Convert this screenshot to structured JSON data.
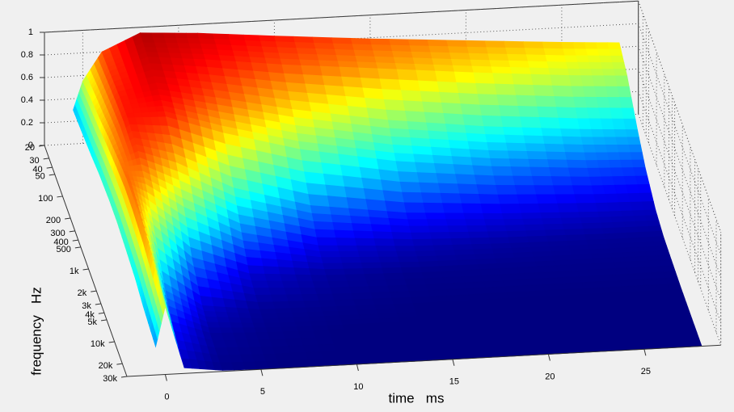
{
  "chart_data": {
    "type": "surface",
    "x_label": "time   ms",
    "y_label": "frequency   Hz",
    "x": [
      -0.5,
      0,
      1,
      3,
      6,
      10,
      15,
      20,
      25,
      28
    ],
    "y": [
      20,
      40,
      100,
      200,
      500,
      1000,
      2000,
      5000,
      10000,
      30000
    ],
    "z": [
      [
        0.3,
        0.55,
        0.8,
        0.95,
        0.92,
        0.86,
        0.79,
        0.73,
        0.67,
        0.64
      ],
      [
        0.32,
        0.6,
        0.82,
        0.93,
        0.88,
        0.8,
        0.72,
        0.64,
        0.57,
        0.54
      ],
      [
        0.35,
        0.65,
        0.85,
        0.9,
        0.8,
        0.66,
        0.52,
        0.42,
        0.35,
        0.32
      ],
      [
        0.38,
        0.7,
        0.86,
        0.85,
        0.68,
        0.5,
        0.35,
        0.26,
        0.2,
        0.18
      ],
      [
        0.4,
        0.75,
        0.82,
        0.7,
        0.45,
        0.26,
        0.15,
        0.1,
        0.07,
        0.06
      ],
      [
        0.4,
        0.78,
        0.72,
        0.5,
        0.25,
        0.1,
        0.05,
        0.03,
        0.02,
        0.02
      ],
      [
        0.38,
        0.78,
        0.55,
        0.25,
        0.08,
        0.03,
        0.01,
        0.01,
        0.01,
        0.01
      ],
      [
        0.35,
        0.75,
        0.3,
        0.08,
        0.02,
        0.01,
        0,
        0,
        0,
        0
      ],
      [
        0.3,
        0.7,
        0.15,
        0.03,
        0.01,
        0,
        0,
        0,
        0,
        0
      ],
      [
        0.25,
        0.6,
        0.05,
        0.01,
        0,
        0,
        0,
        0,
        0,
        0
      ]
    ],
    "colormap": "jet",
    "xlim": [
      -2,
      29
    ],
    "ylim": [
      20,
      30000
    ],
    "zlim": [
      0,
      1
    ],
    "xticks": [
      0,
      5,
      10,
      15,
      20,
      25
    ],
    "yticks": [
      20,
      30,
      40,
      50,
      100,
      200,
      300,
      400,
      500,
      {
        "value": 1000,
        "label": "1k"
      },
      {
        "value": 2000,
        "label": "2k"
      },
      {
        "value": 3000,
        "label": "3k"
      },
      {
        "value": 4000,
        "label": "4k"
      },
      {
        "value": 5000,
        "label": "5k"
      },
      {
        "value": 10000,
        "label": "10k"
      },
      {
        "value": 20000,
        "label": "20k"
      },
      {
        "value": 30000,
        "label": "30k"
      }
    ],
    "zticks": [
      0,
      0.2,
      0.4,
      0.6,
      0.8,
      1
    ],
    "y_scale": "log",
    "grid": true
  }
}
